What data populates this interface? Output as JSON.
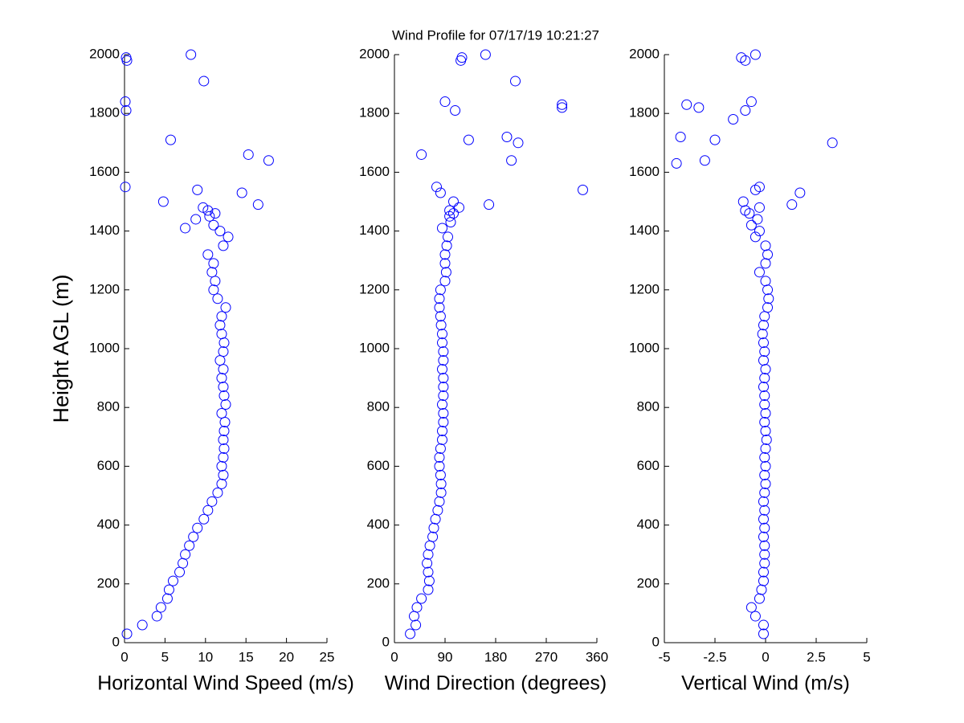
{
  "title": "Wind Profile for  07/17/19 10:21:27",
  "chart_data": [
    {
      "type": "scatter",
      "xlabel": "Horizontal Wind Speed (m/s)",
      "ylabel": "Height AGL (m)",
      "color": "#0000ff",
      "xlim": [
        0,
        25
      ],
      "xticks": [
        0,
        5,
        10,
        15,
        20,
        25
      ],
      "ylim": [
        0,
        2000
      ],
      "yticks": [
        0,
        200,
        400,
        600,
        800,
        1000,
        1200,
        1400,
        1600,
        1800,
        2000
      ],
      "x": [
        0.3,
        2.2,
        4.0,
        4.5,
        5.3,
        5.5,
        6.0,
        6.8,
        7.2,
        7.5,
        8.0,
        8.5,
        9.0,
        9.8,
        10.3,
        10.8,
        11.5,
        12.0,
        12.2,
        12.0,
        12.2,
        12.3,
        12.2,
        12.3,
        12.4,
        12.0,
        12.5,
        12.3,
        12.2,
        12.0,
        12.2,
        11.8,
        12.2,
        12.3,
        12.0,
        11.8,
        12.0,
        12.5,
        11.5,
        11.0,
        11.2,
        10.8,
        11.0,
        10.3,
        12.2,
        12.8,
        11.8,
        7.5,
        11.0,
        8.8,
        10.5,
        11.2,
        10.3,
        9.7,
        16.5,
        4.8,
        14.5,
        9.0,
        0.1,
        17.8,
        15.3,
        5.7,
        0.2,
        0.1,
        9.8,
        0.3,
        0.2,
        8.2
      ],
      "y": [
        30,
        60,
        90,
        120,
        150,
        180,
        210,
        240,
        270,
        300,
        330,
        360,
        390,
        420,
        450,
        480,
        510,
        540,
        570,
        600,
        630,
        660,
        690,
        720,
        750,
        780,
        810,
        840,
        870,
        900,
        930,
        960,
        990,
        1020,
        1050,
        1080,
        1110,
        1140,
        1170,
        1200,
        1230,
        1260,
        1290,
        1320,
        1350,
        1380,
        1400,
        1410,
        1420,
        1440,
        1450,
        1460,
        1470,
        1480,
        1490,
        1500,
        1530,
        1540,
        1550,
        1640,
        1660,
        1710,
        1810,
        1840,
        1910,
        1980,
        1990,
        2000
      ]
    },
    {
      "type": "scatter",
      "xlabel": "Wind Direction (degrees)",
      "color": "#0000ff",
      "xlim": [
        0,
        360
      ],
      "xticks": [
        0,
        90,
        180,
        270,
        360
      ],
      "ylim": [
        0,
        2000
      ],
      "yticks": [
        0,
        200,
        400,
        600,
        800,
        1000,
        1200,
        1400,
        1600,
        1800,
        2000
      ],
      "x": [
        28,
        38,
        35,
        40,
        48,
        60,
        62,
        60,
        58,
        60,
        63,
        68,
        70,
        73,
        77,
        80,
        83,
        83,
        82,
        80,
        80,
        82,
        85,
        85,
        87,
        87,
        85,
        87,
        87,
        87,
        85,
        87,
        87,
        85,
        85,
        83,
        82,
        80,
        80,
        82,
        90,
        92,
        90,
        90,
        93,
        95,
        85,
        100,
        98,
        105,
        98,
        115,
        168,
        105,
        82,
        335,
        75,
        208,
        48,
        220,
        132,
        200,
        108,
        298,
        298,
        90,
        215,
        118,
        120,
        162
      ],
      "y": [
        30,
        60,
        90,
        120,
        150,
        180,
        210,
        240,
        270,
        300,
        330,
        360,
        390,
        420,
        450,
        480,
        510,
        540,
        570,
        600,
        630,
        660,
        690,
        720,
        750,
        780,
        810,
        840,
        870,
        900,
        930,
        960,
        990,
        1020,
        1050,
        1080,
        1110,
        1140,
        1170,
        1200,
        1230,
        1260,
        1290,
        1320,
        1350,
        1380,
        1410,
        1430,
        1450,
        1460,
        1470,
        1480,
        1490,
        1500,
        1530,
        1540,
        1550,
        1640,
        1660,
        1700,
        1710,
        1720,
        1810,
        1820,
        1830,
        1840,
        1910,
        1980,
        1990,
        2000
      ]
    },
    {
      "type": "scatter",
      "xlabel": "Vertical Wind (m/s)",
      "color": "#0000ff",
      "xlim": [
        -5,
        5
      ],
      "xticks": [
        -5,
        -2.5,
        0,
        2.5,
        5
      ],
      "ylim": [
        0,
        2000
      ],
      "yticks": [
        0,
        200,
        400,
        600,
        800,
        1000,
        1200,
        1400,
        1600,
        1800,
        2000
      ],
      "x": [
        -0.1,
        -0.1,
        -0.5,
        -0.7,
        -0.3,
        -0.2,
        -0.1,
        -0.1,
        -0.05,
        -0.05,
        -0.05,
        -0.1,
        -0.05,
        -0.1,
        -0.05,
        -0.1,
        -0.05,
        0.0,
        -0.05,
        0.0,
        -0.05,
        0.0,
        0.05,
        0.0,
        -0.05,
        0.0,
        -0.05,
        -0.05,
        -0.1,
        -0.05,
        0.0,
        -0.1,
        -0.05,
        -0.1,
        -0.15,
        -0.1,
        -0.05,
        0.1,
        0.15,
        0.1,
        0.0,
        -0.3,
        0.0,
        0.1,
        0.0,
        -0.5,
        -0.3,
        -0.7,
        -0.4,
        -0.8,
        -1.0,
        -0.3,
        1.3,
        -1.1,
        1.7,
        -0.5,
        -0.3,
        -4.4,
        -3.0,
        3.3,
        -2.5,
        -4.2,
        -1.6,
        -1.0,
        -3.3,
        -3.9,
        -0.7,
        -1.0,
        -1.2,
        -0.5
      ],
      "y": [
        30,
        60,
        90,
        120,
        150,
        180,
        210,
        240,
        270,
        300,
        330,
        360,
        390,
        420,
        450,
        480,
        510,
        540,
        570,
        600,
        630,
        660,
        690,
        720,
        750,
        780,
        810,
        840,
        870,
        900,
        930,
        960,
        990,
        1020,
        1050,
        1080,
        1110,
        1140,
        1170,
        1200,
        1230,
        1260,
        1290,
        1320,
        1350,
        1380,
        1400,
        1420,
        1440,
        1460,
        1470,
        1480,
        1490,
        1500,
        1530,
        1540,
        1550,
        1630,
        1640,
        1700,
        1710,
        1720,
        1780,
        1810,
        1820,
        1830,
        1840,
        1980,
        1990,
        2000
      ]
    }
  ]
}
